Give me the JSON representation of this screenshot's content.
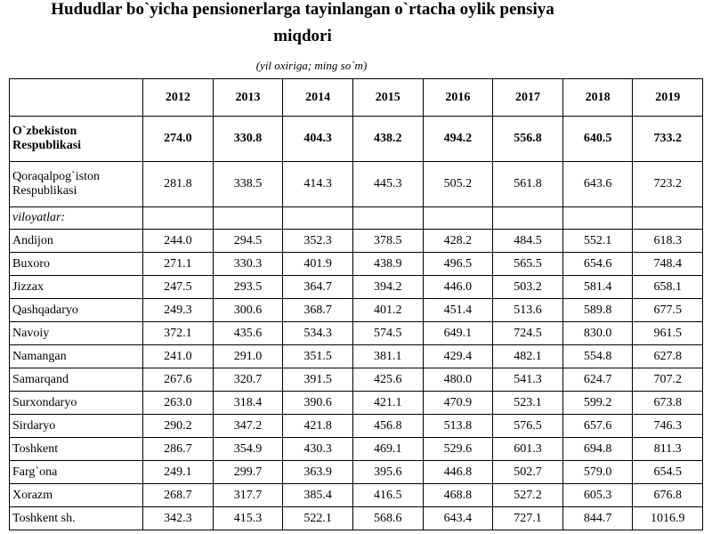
{
  "header": {
    "title_lines": [
      "Hududlar bo`yicha pensionerlarga tayinlangan o`rtacha oylik pensiya",
      "miqdori"
    ],
    "subtitle": "(yil oxiriga; ming so`m)"
  },
  "table": {
    "columns": [
      "2012",
      "2013",
      "2014",
      "2015",
      "2016",
      "2017",
      "2018",
      "2019"
    ],
    "top_rows": [
      {
        "label": "O`zbekiston Respublikasi",
        "values": [
          "274.0",
          "330.8",
          "404.3",
          "438.2",
          "494.2",
          "556.8",
          "640.5",
          "733.2"
        ]
      },
      {
        "label": "Qoraqalpog`iston Respublikasi",
        "values": [
          "281.8",
          "338.5",
          "414.3",
          "445.3",
          "505.2",
          "561.8",
          "643.6",
          "723.2"
        ]
      }
    ],
    "section_label": "viloyatlar:",
    "rows": [
      {
        "label": "Andijon",
        "values": [
          "244.0",
          "294.5",
          "352.3",
          "378.5",
          "428.2",
          "484.5",
          "552.1",
          "618.3"
        ]
      },
      {
        "label": "Buxoro",
        "values": [
          "271.1",
          "330.3",
          "401.9",
          "438.9",
          "496.5",
          "565.5",
          "654.6",
          "748.4"
        ]
      },
      {
        "label": "Jizzax",
        "values": [
          "247.5",
          "293.5",
          "364.7",
          "394.2",
          "446.0",
          "503.2",
          "581.4",
          "658.1"
        ]
      },
      {
        "label": "Qashqadaryo",
        "values": [
          "249.3",
          "300.6",
          "368.7",
          "401.2",
          "451.4",
          "513.6",
          "589.8",
          "677.5"
        ]
      },
      {
        "label": "Navoiy",
        "values": [
          "372.1",
          "435.6",
          "534.3",
          "574.5",
          "649.1",
          "724.5",
          "830.0",
          "961.5"
        ]
      },
      {
        "label": "Namangan",
        "values": [
          "241.0",
          "291.0",
          "351.5",
          "381.1",
          "429.4",
          "482.1",
          "554.8",
          "627.8"
        ]
      },
      {
        "label": "Samarqand",
        "values": [
          "267.6",
          "320.7",
          "391.5",
          "425.6",
          "480.0",
          "541.3",
          "624.7",
          "707.2"
        ]
      },
      {
        "label": "Surxondaryo",
        "values": [
          "263.0",
          "318.4",
          "390.6",
          "421.1",
          "470.9",
          "523.1",
          "599.2",
          "673.8"
        ]
      },
      {
        "label": "Sirdaryo",
        "values": [
          "290.2",
          "347.2",
          "421.8",
          "456.8",
          "513.8",
          "576.5",
          "657.6",
          "746.3"
        ]
      },
      {
        "label": "Toshkent",
        "values": [
          "286.7",
          "354.9",
          "430.3",
          "469.1",
          "529.6",
          "601.3",
          "694.8",
          "811.3"
        ]
      },
      {
        "label": "Farg`ona",
        "values": [
          "249.1",
          "299.7",
          "363.9",
          "395.6",
          "446.8",
          "502.7",
          "579.0",
          "654.5"
        ]
      },
      {
        "label": "Xorazm",
        "values": [
          "268.7",
          "317.7",
          "385.4",
          "416.5",
          "468.8",
          "527.2",
          "605.3",
          "676.8"
        ]
      },
      {
        "label": "Toshkent sh.",
        "values": [
          "342.3",
          "415.3",
          "522.1",
          "568.6",
          "643.4",
          "727.1",
          "844.7",
          "1016.9"
        ]
      }
    ]
  }
}
